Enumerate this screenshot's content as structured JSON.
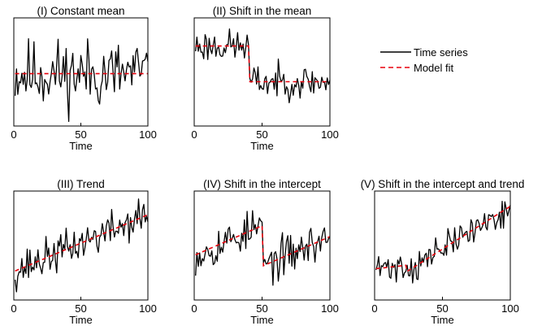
{
  "legend": {
    "items": [
      {
        "label": "Time series",
        "color": "#000000",
        "dash": "solid"
      },
      {
        "label": "Model fit",
        "color": "#e8000b",
        "dash": "dashed"
      }
    ]
  },
  "chart_data": [
    {
      "type": "line",
      "title": "(I) Constant mean",
      "xlabel": "Time",
      "ylabel": "",
      "xlim": [
        0,
        100
      ],
      "xticks": [
        "0",
        "50",
        "100"
      ],
      "ylim": [
        -3,
        3.2
      ],
      "grid": false,
      "series": [
        {
          "name": "Time series",
          "noise": 1.0,
          "seed": 11,
          "x_range": [
            1,
            100
          ]
        },
        {
          "name": "Model fit",
          "fit": {
            "type": "constant",
            "level": 0
          }
        }
      ]
    },
    {
      "type": "line",
      "title": "(II) Shift in the mean",
      "xlabel": "Time",
      "ylabel": "",
      "xlim": [
        0,
        100
      ],
      "xticks": [
        "0",
        "50",
        "100"
      ],
      "ylim": [
        -5,
        5
      ],
      "grid": false,
      "series": [
        {
          "name": "Time series",
          "noise": 0.75,
          "seed": 23,
          "x_range": [
            1,
            100
          ]
        },
        {
          "name": "Model fit",
          "fit": {
            "type": "shift",
            "break": 41,
            "before": 2.4,
            "after": -0.9
          }
        }
      ]
    },
    {
      "type": "line",
      "title": "(III) Trend",
      "xlabel": "Time",
      "ylabel": "",
      "xlim": [
        0,
        100
      ],
      "xticks": [
        "0",
        "50",
        "100"
      ],
      "ylim": [
        -3,
        8.5
      ],
      "grid": false,
      "series": [
        {
          "name": "Time series",
          "noise": 1.0,
          "seed": 37,
          "x_range": [
            1,
            100
          ]
        },
        {
          "name": "Model fit",
          "fit": {
            "type": "trend",
            "intercept": 0,
            "slope": 0.06
          }
        }
      ]
    },
    {
      "type": "line",
      "title": "(IV) Shift in the intercept",
      "xlabel": "Time",
      "ylabel": "",
      "xlim": [
        0,
        100
      ],
      "xticks": [
        "0",
        "50",
        "100"
      ],
      "ylim": [
        -4.5,
        6.5
      ],
      "grid": false,
      "series": [
        {
          "name": "Time series",
          "noise": 1.0,
          "seed": 53,
          "x_range": [
            1,
            100
          ]
        },
        {
          "name": "Model fit",
          "fit": {
            "type": "intercept_shift",
            "break": 51,
            "intercept": 0,
            "slope": 0.06,
            "shift": -4.1
          }
        }
      ]
    },
    {
      "type": "line",
      "title": "(V) Shift in the intercept and trend",
      "xlabel": "Time",
      "ylabel": "",
      "xlim": [
        0,
        100
      ],
      "xticks": [
        "0",
        "50",
        "100"
      ],
      "ylim": [
        -4,
        10
      ],
      "grid": false,
      "series": [
        {
          "name": "Time series",
          "noise": 1.0,
          "seed": 71,
          "x_range": [
            1,
            100
          ]
        },
        {
          "name": "Model fit",
          "fit": {
            "type": "intercept_trend_shift",
            "break": 24,
            "intercept": 0,
            "slope": 0.02,
            "shift": -0.8,
            "slope_after": 0.11
          }
        }
      ]
    }
  ]
}
